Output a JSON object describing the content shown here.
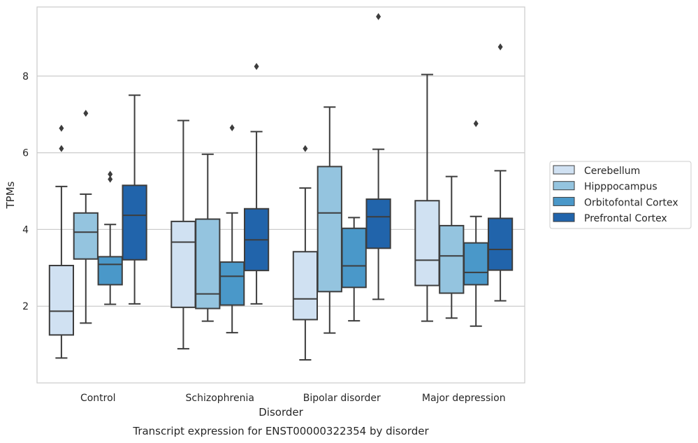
{
  "chart_data": {
    "type": "box",
    "xlabel": "Disorder",
    "ylabel": "TPMs",
    "caption": "Transcript expression for ENST00000322354 by disorder",
    "ylim": [
      0.0,
      9.8
    ],
    "yticks": [
      2,
      4,
      6,
      8
    ],
    "grid": "horizontal",
    "legend_position": "right",
    "categories": [
      "Control",
      "Schizophrenia",
      "Bipolar disorder",
      "Major depression"
    ],
    "series": [
      {
        "name": "Cerebellum",
        "color": "#d0e1f2",
        "boxes": [
          {
            "whislo": 0.65,
            "q1": 1.25,
            "med": 1.87,
            "q3": 3.06,
            "whishi": 5.12,
            "fliers": [
              6.11,
              6.64
            ]
          },
          {
            "whislo": 0.89,
            "q1": 1.97,
            "med": 3.67,
            "q3": 4.21,
            "whishi": 6.84,
            "fliers": []
          },
          {
            "whislo": 0.6,
            "q1": 1.65,
            "med": 2.19,
            "q3": 3.42,
            "whishi": 5.08,
            "fliers": [
              6.11
            ]
          },
          {
            "whislo": 1.61,
            "q1": 2.54,
            "med": 3.2,
            "q3": 4.75,
            "whishi": 8.04,
            "fliers": []
          }
        ]
      },
      {
        "name": "Hipppocampus",
        "color": "#94c4df",
        "boxes": [
          {
            "whislo": 1.56,
            "q1": 3.23,
            "med": 3.93,
            "q3": 4.43,
            "whishi": 4.92,
            "fliers": [
              7.03
            ]
          },
          {
            "whislo": 1.61,
            "q1": 1.94,
            "med": 2.32,
            "q3": 4.27,
            "whishi": 5.96,
            "fliers": []
          },
          {
            "whislo": 1.3,
            "q1": 2.38,
            "med": 4.43,
            "q3": 5.64,
            "whishi": 7.19,
            "fliers": []
          },
          {
            "whislo": 1.69,
            "q1": 2.34,
            "med": 3.31,
            "q3": 4.1,
            "whishi": 5.38,
            "fliers": []
          }
        ]
      },
      {
        "name": "Orbitofontal Cortex",
        "color": "#4a98c9",
        "boxes": [
          {
            "whislo": 2.05,
            "q1": 2.56,
            "med": 3.09,
            "q3": 3.29,
            "whishi": 4.13,
            "fliers": [
              5.31,
              5.44
            ]
          },
          {
            "whislo": 1.31,
            "q1": 2.03,
            "med": 2.78,
            "q3": 3.15,
            "whishi": 4.43,
            "fliers": [
              6.65
            ]
          },
          {
            "whislo": 1.62,
            "q1": 2.49,
            "med": 3.05,
            "q3": 4.03,
            "whishi": 4.31,
            "fliers": []
          },
          {
            "whislo": 1.48,
            "q1": 2.56,
            "med": 2.88,
            "q3": 3.65,
            "whishi": 4.34,
            "fliers": [
              6.76
            ]
          }
        ]
      },
      {
        "name": "Prefrontal Cortex",
        "color": "#2164ab",
        "boxes": [
          {
            "whislo": 2.06,
            "q1": 3.21,
            "med": 4.37,
            "q3": 5.15,
            "whishi": 7.5,
            "fliers": []
          },
          {
            "whislo": 2.06,
            "q1": 2.93,
            "med": 3.73,
            "q3": 4.54,
            "whishi": 6.55,
            "fliers": [
              8.25
            ]
          },
          {
            "whislo": 2.18,
            "q1": 3.51,
            "med": 4.33,
            "q3": 4.79,
            "whishi": 6.09,
            "fliers": [
              9.55
            ]
          },
          {
            "whislo": 2.14,
            "q1": 2.94,
            "med": 3.48,
            "q3": 4.29,
            "whishi": 5.53,
            "fliers": [
              8.76
            ]
          }
        ]
      }
    ]
  }
}
